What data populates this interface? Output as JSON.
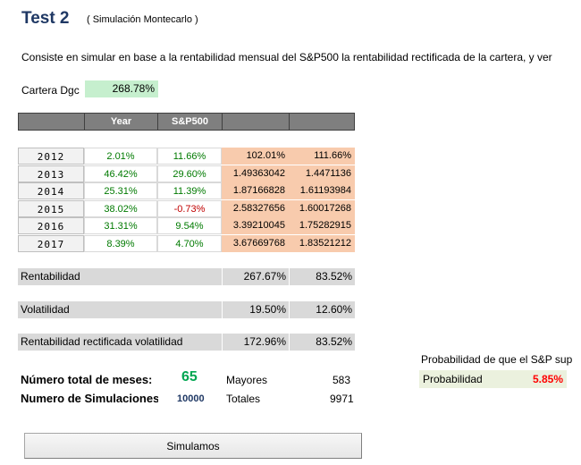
{
  "header": {
    "title": "Test 2",
    "subtitle": "( Simulación Montecarlo )"
  },
  "description": "Consiste en simular en base a la rentabilidad mensual del S&P500 la rentabilidad rectificada de la cartera, y ver",
  "cartera": {
    "label": "Cartera Dgc",
    "value": "268.78%"
  },
  "table": {
    "columns": [
      "",
      "Year",
      "S&P500",
      "",
      ""
    ],
    "rows": [
      {
        "year": "2012",
        "ret": "2.01%",
        "sp": "11.66%",
        "a": "102.01%",
        "b": "111.66%"
      },
      {
        "year": "2013",
        "ret": "46.42%",
        "sp": "29.60%",
        "a": "1.49363042",
        "b": "1.4471136"
      },
      {
        "year": "2014",
        "ret": "25.31%",
        "sp": "11.39%",
        "a": "1.87166828",
        "b": "1.61193984"
      },
      {
        "year": "2015",
        "ret": "38.02%",
        "sp": "-0.73%",
        "a": "2.58327656",
        "b": "1.60017268"
      },
      {
        "year": "2016",
        "ret": "31.31%",
        "sp": "9.54%",
        "a": "3.39210045",
        "b": "1.75282915"
      },
      {
        "year": "2017",
        "ret": "8.39%",
        "sp": "4.70%",
        "a": "3.67669768",
        "b": "1.83521212"
      }
    ]
  },
  "summary": {
    "rentabilidad": {
      "label": "Rentabilidad",
      "v1": "267.67%",
      "v2": "83.52%"
    },
    "volatilidad": {
      "label": "Volatilidad",
      "v1": "19.50%",
      "v2": "12.60%"
    },
    "rectificada": {
      "label": "Rentabilidad rectificada volatilidad",
      "v1": "172.96%",
      "v2": "83.52%"
    }
  },
  "stats": {
    "meses_label": "Número total de meses:",
    "meses_value": "65",
    "sims_label": "Numero de Simulaciones",
    "sims_value": "10000",
    "mayores_label": "Mayores",
    "mayores_value": "583",
    "totales_label": "Totales",
    "totales_value": "9971"
  },
  "probability": {
    "title": "Probabilidad de que el S&P sup",
    "label": "Probabilidad",
    "value": "5.85%"
  },
  "button": {
    "label": "Simulamos"
  },
  "colors": {
    "title": "#1f3864",
    "header_bar": "#7f7f7f",
    "orange_cells": "#f8cbad",
    "green_text": "#007a00",
    "negative_text": "#c00000",
    "cartera_bg": "#c6efce",
    "probability_bg": "#ebf1de",
    "probability_value": "#ff0000"
  }
}
